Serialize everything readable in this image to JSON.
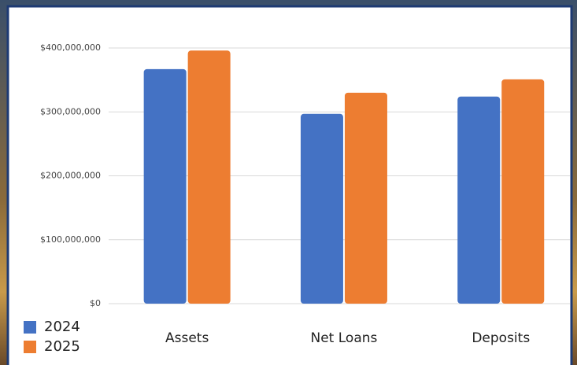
{
  "chart_data": {
    "type": "bar",
    "categories": [
      "Assets",
      "Net Loans",
      "Deposits"
    ],
    "series": [
      {
        "name": "2024",
        "color": "#4472c4",
        "values": [
          367000000,
          297000000,
          324000000
        ]
      },
      {
        "name": "2025",
        "color": "#ed7d31",
        "values": [
          396000000,
          330000000,
          351000000
        ]
      }
    ],
    "ylim": [
      0,
      400000000
    ],
    "yticks": [
      {
        "value": 0,
        "label": "$0"
      },
      {
        "value": 100000000,
        "label": "$100,000,000"
      },
      {
        "value": 200000000,
        "label": "$200,000,000"
      },
      {
        "value": 300000000,
        "label": "$300,000,000"
      },
      {
        "value": 400000000,
        "label": "$400,000,000"
      }
    ],
    "grid": true,
    "legend": "bottom-left"
  }
}
